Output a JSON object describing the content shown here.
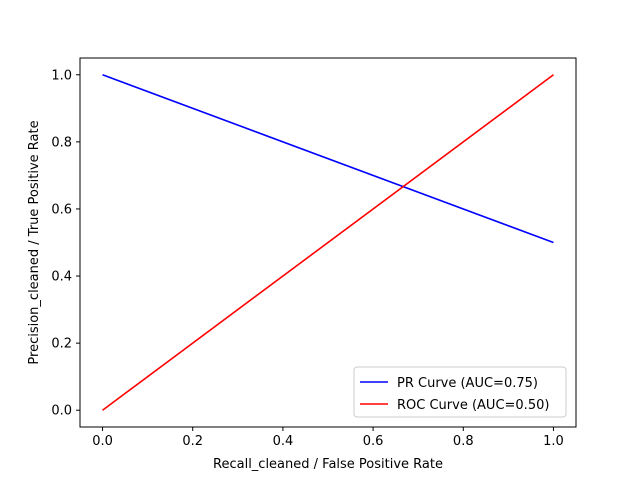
{
  "chart_data": {
    "type": "line",
    "title": "",
    "xlabel": "Recall_cleaned / False Positive Rate",
    "ylabel": "Precision_cleaned / True Positive Rate",
    "xlim": [
      -0.05,
      1.05
    ],
    "ylim": [
      -0.05,
      1.05
    ],
    "xticks": [
      0.0,
      0.2,
      0.4,
      0.6,
      0.8,
      1.0
    ],
    "yticks": [
      0.0,
      0.2,
      0.4,
      0.6,
      0.8,
      1.0
    ],
    "xtick_labels": [
      "0.0",
      "0.2",
      "0.4",
      "0.6",
      "0.8",
      "1.0"
    ],
    "ytick_labels": [
      "0.0",
      "0.2",
      "0.4",
      "0.6",
      "0.8",
      "1.0"
    ],
    "grid": false,
    "legend_position": "lower-right",
    "series": [
      {
        "name": "PR Curve (AUC=0.75)",
        "color": "#0000ff",
        "x": [
          0.0,
          1.0
        ],
        "y": [
          1.0,
          0.5
        ]
      },
      {
        "name": "ROC Curve (AUC=0.50)",
        "color": "#ff0000",
        "x": [
          0.0,
          1.0
        ],
        "y": [
          0.0,
          1.0
        ]
      }
    ]
  }
}
